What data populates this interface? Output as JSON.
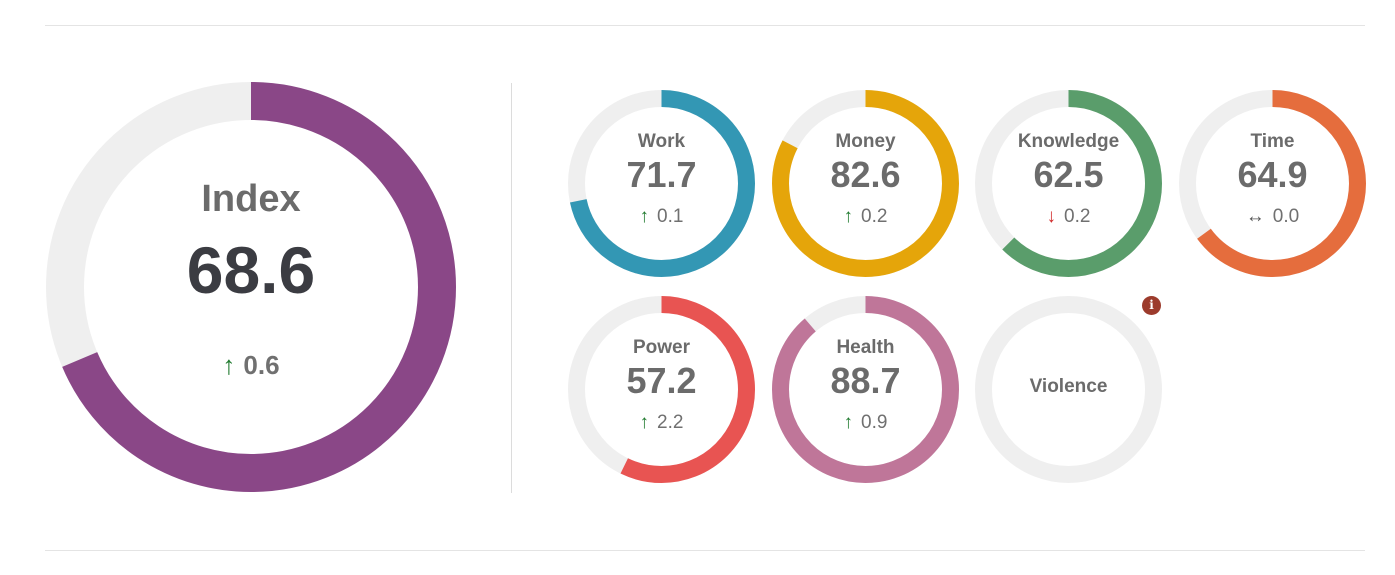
{
  "index": {
    "label": "Index",
    "value": "68.6",
    "delta": "0.6",
    "direction": "up",
    "percent": 68.6,
    "color": "#8a4787"
  },
  "categories": [
    {
      "key": "work",
      "label": "Work",
      "value": "71.7",
      "delta": "0.1",
      "direction": "up",
      "percent": 71.7,
      "color": "#3397b4"
    },
    {
      "key": "money",
      "label": "Money",
      "value": "82.6",
      "delta": "0.2",
      "direction": "up",
      "percent": 82.6,
      "color": "#e5a50a"
    },
    {
      "key": "knowledge",
      "label": "Knowledge",
      "value": "62.5",
      "delta": "0.2",
      "direction": "down",
      "percent": 62.5,
      "color": "#5a9d6b"
    },
    {
      "key": "time",
      "label": "Time",
      "value": "64.9",
      "delta": "0.0",
      "direction": "flat",
      "percent": 64.9,
      "color": "#e56d3d"
    },
    {
      "key": "power",
      "label": "Power",
      "value": "57.2",
      "delta": "2.2",
      "direction": "up",
      "percent": 57.2,
      "color": "#e85452"
    },
    {
      "key": "health",
      "label": "Health",
      "value": "88.7",
      "delta": "0.9",
      "direction": "up",
      "percent": 88.7,
      "color": "#bf7699"
    },
    {
      "key": "violence",
      "label": "Violence",
      "value": "",
      "delta": "",
      "direction": "none",
      "percent": 0,
      "color": "#efefef"
    }
  ],
  "info_badge": {
    "icon": "info-icon",
    "text": "i"
  },
  "colors": {
    "track": "#efefef",
    "up": "#1f7a2e",
    "down": "#d12b2b",
    "flat": "#555555"
  },
  "arrows": {
    "up": "↑",
    "down": "↓",
    "flat": "↔"
  }
}
